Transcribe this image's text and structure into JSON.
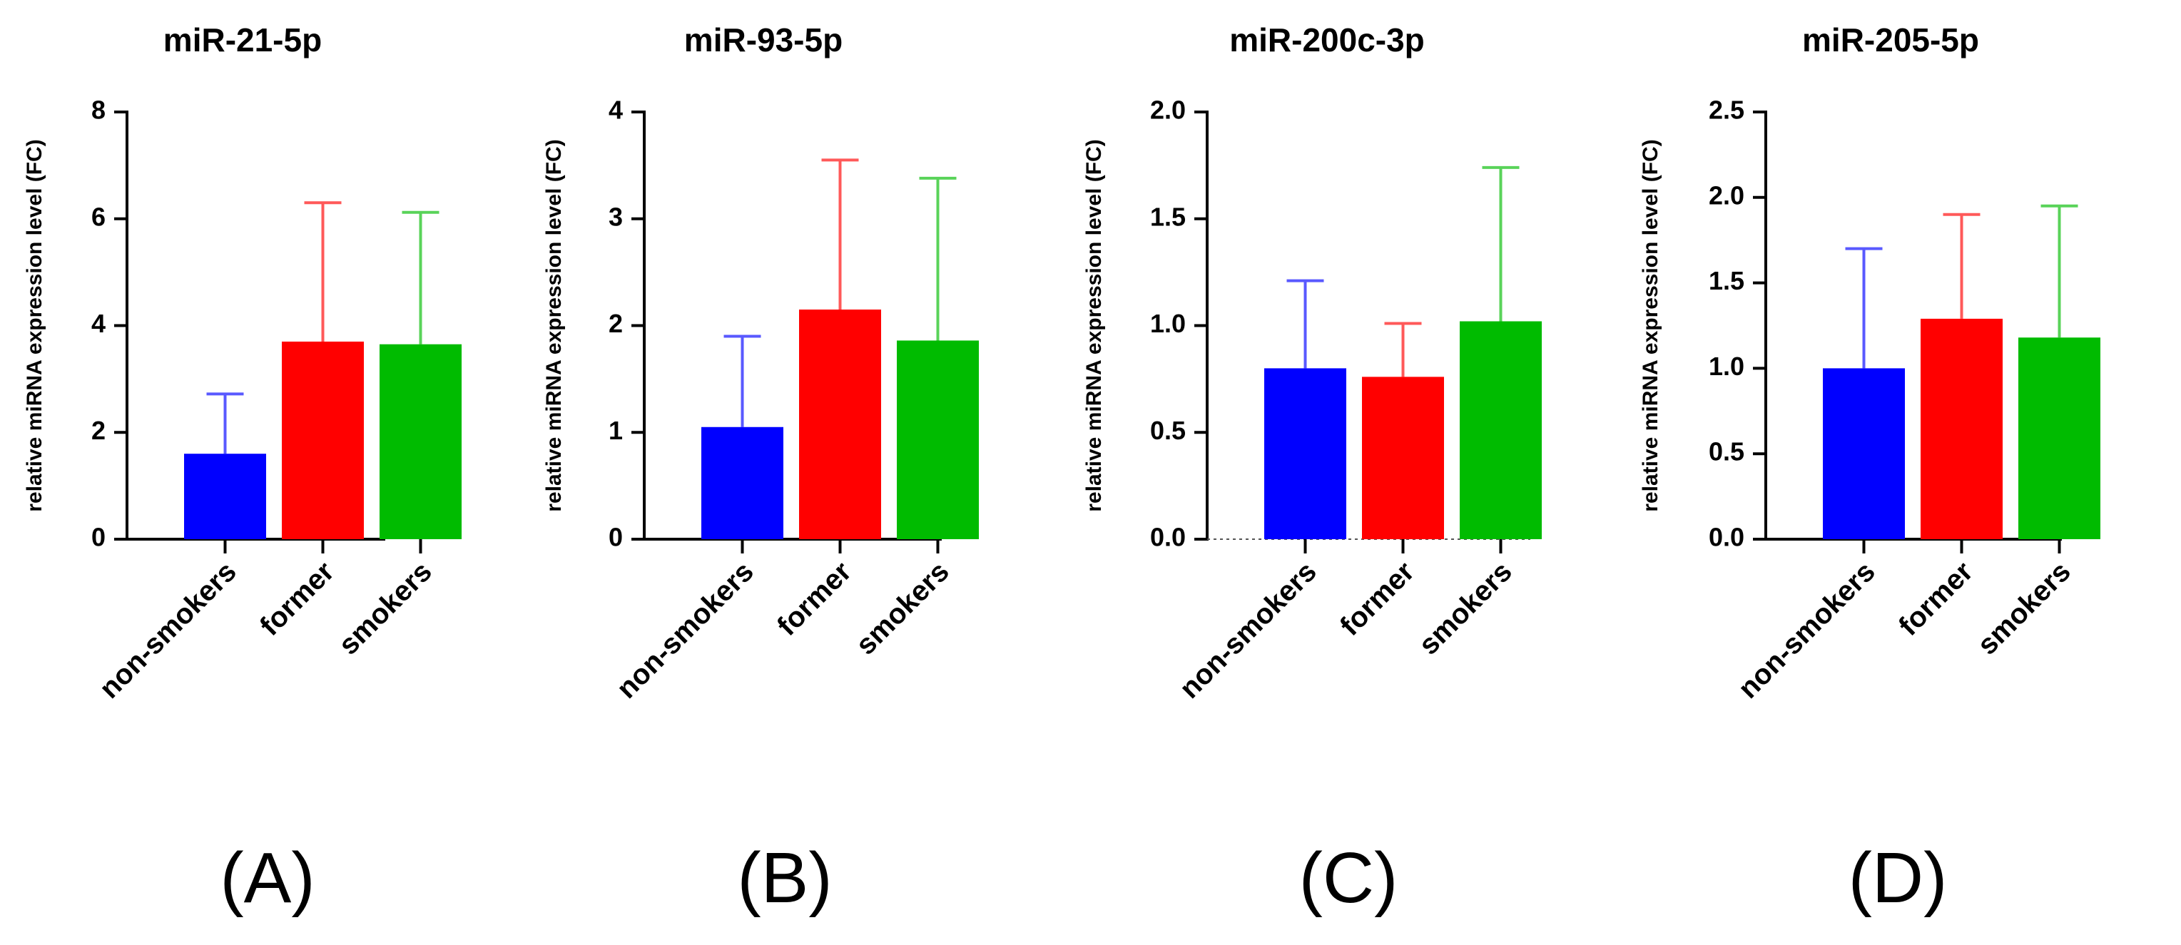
{
  "chart_data": [
    {
      "type": "bar",
      "panel_label": "(A)",
      "title": "miR-21-5p",
      "xlabel": "",
      "ylabel": "relative miRNA expression level (FC)",
      "categories": [
        "non-smokers",
        "former",
        "smokers"
      ],
      "values": [
        1.6,
        3.7,
        3.65
      ],
      "error_upper": [
        2.72,
        6.3,
        6.12
      ],
      "colors": [
        "#0000FF",
        "#FF0000",
        "#00BB00"
      ],
      "ylim": [
        0,
        8
      ],
      "yticks": [
        0,
        2,
        4,
        6,
        8
      ],
      "ytick_labels": [
        "0",
        "2",
        "4",
        "6",
        "8"
      ],
      "dotted_baseline": false
    },
    {
      "type": "bar",
      "panel_label": "(B)",
      "title": "miR-93-5p",
      "xlabel": "",
      "ylabel": "relative miRNA expression level (FC)",
      "categories": [
        "non-smokers",
        "former",
        "smokers"
      ],
      "values": [
        1.05,
        2.15,
        1.86
      ],
      "error_upper": [
        1.9,
        3.55,
        3.38
      ],
      "colors": [
        "#0000FF",
        "#FF0000",
        "#00BB00"
      ],
      "ylim": [
        0,
        4
      ],
      "yticks": [
        0,
        1,
        2,
        3,
        4
      ],
      "ytick_labels": [
        "0",
        "1",
        "2",
        "3",
        "4"
      ],
      "dotted_baseline": false
    },
    {
      "type": "bar",
      "panel_label": "(C)",
      "title": "miR-200c-3p",
      "xlabel": "",
      "ylabel": "relative miRNA expression level (FC)",
      "categories": [
        "non-smokers",
        "former",
        "smokers"
      ],
      "values": [
        0.8,
        0.76,
        1.02
      ],
      "error_upper": [
        1.21,
        1.01,
        1.74
      ],
      "colors": [
        "#0000FF",
        "#FF0000",
        "#00BB00"
      ],
      "ylim": [
        0,
        2.0
      ],
      "yticks": [
        0,
        0.5,
        1.0,
        1.5,
        2.0
      ],
      "ytick_labels": [
        "0.0",
        "0.5",
        "1.0",
        "1.5",
        "2.0"
      ],
      "dotted_baseline": true
    },
    {
      "type": "bar",
      "panel_label": "(D)",
      "title": "miR-205-5p",
      "xlabel": "",
      "ylabel": "relative miRNA expression level (FC)",
      "categories": [
        "non-smokers",
        "former",
        "smokers"
      ],
      "values": [
        1.0,
        1.29,
        1.18
      ],
      "error_upper": [
        1.7,
        1.9,
        1.95
      ],
      "colors": [
        "#0000FF",
        "#FF0000",
        "#00BB00"
      ],
      "ylim": [
        0,
        2.5
      ],
      "yticks": [
        0,
        0.5,
        1.0,
        1.5,
        2.0,
        2.5
      ],
      "ytick_labels": [
        "0.0",
        "0.5",
        "1.0",
        "1.5",
        "2.0",
        "2.5"
      ],
      "dotted_baseline": false
    }
  ]
}
